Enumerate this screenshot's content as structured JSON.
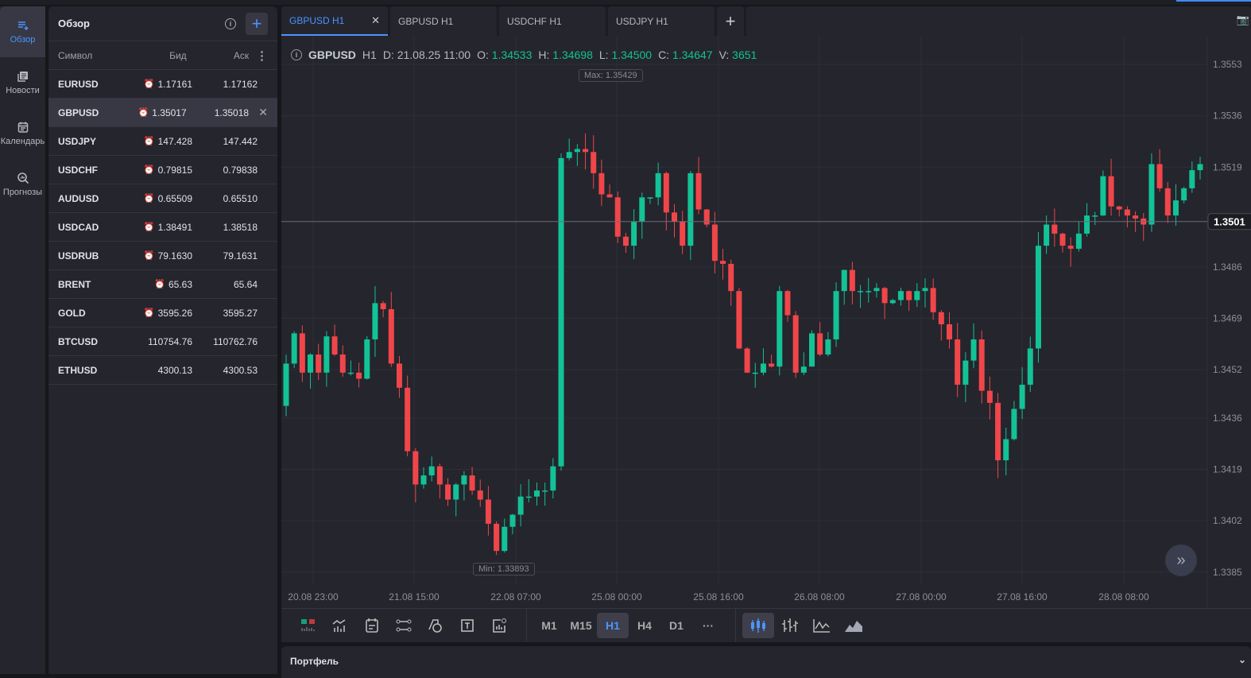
{
  "rail": [
    {
      "label": "Обзор",
      "icon": "watchlist-add-icon",
      "active": true
    },
    {
      "label": "Новости",
      "icon": "news-icon"
    },
    {
      "label": "Календарь",
      "icon": "calendar-icon"
    },
    {
      "label": "Прогнозы",
      "icon": "forecast-search-icon"
    }
  ],
  "watchlist": {
    "title": "Обзор",
    "columns": {
      "symbol": "Символ",
      "bid": "Бид",
      "ask": "Аск"
    },
    "rows": [
      {
        "symbol": "EURUSD",
        "bid": "1.17161",
        "ask": "1.17162",
        "clock": true
      },
      {
        "symbol": "GBPUSD",
        "bid": "1.35017",
        "ask": "1.35018",
        "clock": true,
        "selected": true
      },
      {
        "symbol": "USDJPY",
        "bid": "147.428",
        "ask": "147.442",
        "clock": true
      },
      {
        "symbol": "USDCHF",
        "bid": "0.79815",
        "ask": "0.79838",
        "clock": true
      },
      {
        "symbol": "AUDUSD",
        "bid": "0.65509",
        "ask": "0.65510",
        "clock": true
      },
      {
        "symbol": "USDCAD",
        "bid": "1.38491",
        "ask": "1.38518",
        "clock": true
      },
      {
        "symbol": "USDRUB",
        "bid": "79.1630",
        "ask": "79.1631",
        "clock": true
      },
      {
        "symbol": "BRENT",
        "bid": "65.63",
        "ask": "65.64",
        "clock": true
      },
      {
        "symbol": "GOLD",
        "bid": "3595.26",
        "ask": "3595.27",
        "clock": true
      },
      {
        "symbol": "BTCUSD",
        "bid": "110754.76",
        "ask": "110762.76",
        "clock": false
      },
      {
        "symbol": "ETHUSD",
        "bid": "4300.13",
        "ask": "4300.53",
        "clock": false
      }
    ]
  },
  "tabs": [
    {
      "label": "GBPUSD H1",
      "active": true
    },
    {
      "label": "GBPUSD H1"
    },
    {
      "label": "USDCHF H1"
    },
    {
      "label": "USDJPY H1"
    }
  ],
  "info": {
    "symbol": "GBPUSD",
    "tf": "H1",
    "date_label": "D:",
    "date": "21.08.25 11:00",
    "o_label": "O:",
    "o": "1.34533",
    "h_label": "H:",
    "h": "1.34698",
    "l_label": "L:",
    "l": "1.34500",
    "c_label": "C:",
    "c": "1.34647",
    "v_label": "V:",
    "v": "3651"
  },
  "markers": {
    "max": "Max: 1.35429",
    "min": "Min: 1.33893",
    "current": "1.3501"
  },
  "colors": {
    "up": "#13c296",
    "down": "#f0464a",
    "accent": "#4d94ff"
  },
  "chart_data": {
    "type": "candlestick",
    "ylim": [
      1.338,
      1.356
    ],
    "y_ticks": [
      "1.3553",
      "1.3536",
      "1.3519",
      "1.3486",
      "1.3469",
      "1.3452",
      "1.3436",
      "1.3419",
      "1.3402",
      "1.3385"
    ],
    "x_ticks": [
      "20.08 23:00",
      "21.08 15:00",
      "22.08 07:00",
      "25.08 00:00",
      "25.08 16:00",
      "26.08 08:00",
      "27.08 00:00",
      "27.08 16:00",
      "28.08 08:00"
    ],
    "current_price": 1.3501,
    "closes": [
      1.3454,
      1.3464,
      1.3451,
      1.3457,
      1.3451,
      1.3463,
      1.3457,
      1.3451,
      1.3451,
      1.3449,
      1.3462,
      1.3474,
      1.3472,
      1.3454,
      1.3446,
      1.3425,
      1.3414,
      1.3417,
      1.342,
      1.3414,
      1.3409,
      1.3414,
      1.3417,
      1.3412,
      1.3409,
      1.3401,
      1.3392,
      1.34,
      1.3404,
      1.341,
      1.341,
      1.3412,
      1.3412,
      1.342,
      1.3522,
      1.3524,
      1.3525,
      1.3524,
      1.3517,
      1.351,
      1.3509,
      1.3496,
      1.3493,
      1.3501,
      1.3509,
      1.3509,
      1.3517,
      1.3504,
      1.3501,
      1.3493,
      1.3517,
      1.3505,
      1.35,
      1.3488,
      1.3487,
      1.3478,
      1.3459,
      1.3451,
      1.3451,
      1.3454,
      1.3453,
      1.3478,
      1.347,
      1.3451,
      1.3453,
      1.3464,
      1.3457,
      1.3462,
      1.3478,
      1.3485,
      1.3478,
      1.3478,
      1.3478,
      1.3479,
      1.3474,
      1.3475,
      1.3478,
      1.3475,
      1.3478,
      1.3479,
      1.3471,
      1.3467,
      1.3462,
      1.3447,
      1.3455,
      1.3462,
      1.3445,
      1.3441,
      1.3422,
      1.3429,
      1.3439,
      1.3447,
      1.3459,
      1.3493,
      1.35,
      1.3497,
      1.3493,
      1.3492,
      1.3497,
      1.3503,
      1.3503,
      1.3516,
      1.3506,
      1.3505,
      1.3503,
      1.3502,
      1.35,
      1.352,
      1.3512,
      1.3503,
      1.3508,
      1.3512,
      1.3518,
      1.352
    ]
  },
  "toolbar": {
    "timeframes": [
      "M1",
      "M15",
      "H1",
      "H4",
      "D1",
      "···"
    ],
    "active_tf": "H1"
  },
  "portfolio": {
    "title": "Портфель"
  }
}
